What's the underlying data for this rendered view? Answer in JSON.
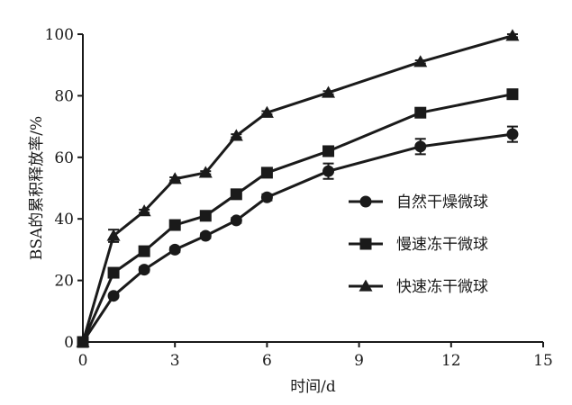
{
  "chart_data": {
    "type": "line",
    "title": "",
    "xlabel": "时间/d",
    "ylabel": "BSA的累积释放率/%",
    "xlim": [
      0,
      15
    ],
    "ylim": [
      0,
      100
    ],
    "xticks": [
      0,
      3,
      6,
      9,
      12,
      15
    ],
    "yticks": [
      0,
      20,
      40,
      60,
      80,
      100
    ],
    "grid": false,
    "legend_position": "right-middle",
    "series": [
      {
        "name": "自然干燥微球",
        "marker": "circle",
        "color": "#1a1a1a",
        "x": [
          0,
          1,
          2,
          3,
          4,
          5,
          6,
          8,
          11,
          14
        ],
        "values": [
          0,
          15,
          23.5,
          30,
          34.5,
          39.5,
          47,
          55.5,
          63.5,
          67.5
        ],
        "error": [
          0,
          0.5,
          0.8,
          0.8,
          0.8,
          0.8,
          1,
          2.5,
          2.5,
          2.5
        ]
      },
      {
        "name": "慢速冻干微球",
        "marker": "square",
        "color": "#1a1a1a",
        "x": [
          0,
          1,
          2,
          3,
          4,
          5,
          6,
          8,
          11,
          14
        ],
        "values": [
          0,
          22.5,
          29.5,
          38,
          41,
          48,
          55,
          62,
          74.5,
          80.5
        ],
        "error": [
          0,
          0.5,
          0.8,
          0.8,
          0.8,
          0.8,
          1.5,
          1.5,
          1,
          1
        ]
      },
      {
        "name": "快速冻干微球",
        "marker": "triangle",
        "color": "#1a1a1a",
        "x": [
          0,
          1,
          2,
          3,
          4,
          5,
          6,
          8,
          11,
          14
        ],
        "values": [
          0,
          34.5,
          42.5,
          53,
          55,
          67,
          74.5,
          81,
          91,
          99.5
        ],
        "error": [
          0,
          2,
          0.5,
          0.5,
          0.5,
          0.5,
          0.5,
          0.5,
          0.5,
          0.5
        ]
      }
    ]
  }
}
